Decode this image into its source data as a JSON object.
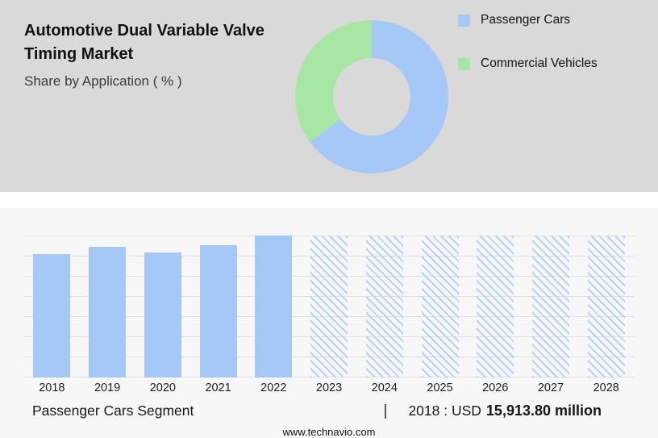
{
  "header": {
    "title": "Automotive Dual Variable Valve Timing Market",
    "subtitle": "Share by Application ( % )"
  },
  "legend": {
    "items": [
      {
        "label": "Passenger Cars",
        "color": "#a6c8f7"
      },
      {
        "label": "Commercial Vehicles",
        "color": "#a8e6a3"
      }
    ]
  },
  "chart_data": [
    {
      "type": "pie",
      "subtype": "donut",
      "title": "Share by Application ( % )",
      "legend_position": "right",
      "segments": [
        {
          "label": "Passenger Cars",
          "value": 65,
          "color": "#a6c8f7"
        },
        {
          "label": "Commercial Vehicles",
          "value": 35,
          "color": "#a8e6a3"
        }
      ]
    },
    {
      "type": "bar",
      "title": "Passenger Cars Segment market size by year",
      "grid": true,
      "bar_color": "#a6c8f7",
      "categories": [
        "2018",
        "2019",
        "2020",
        "2021",
        "2022",
        "2023",
        "2024",
        "2025",
        "2026",
        "2027",
        "2028"
      ],
      "bars": [
        {
          "year": "2018",
          "height_pct": 87,
          "style": "solid",
          "value_usd_million": 15913.8
        },
        {
          "year": "2019",
          "height_pct": 92,
          "style": "solid"
        },
        {
          "year": "2020",
          "height_pct": 88,
          "style": "solid"
        },
        {
          "year": "2021",
          "height_pct": 93,
          "style": "solid"
        },
        {
          "year": "2022",
          "height_pct": 100,
          "style": "solid"
        },
        {
          "year": "2023",
          "height_pct": 100,
          "style": "hatched"
        },
        {
          "year": "2024",
          "height_pct": 100,
          "style": "hatched"
        },
        {
          "year": "2025",
          "height_pct": 100,
          "style": "hatched"
        },
        {
          "year": "2026",
          "height_pct": 100,
          "style": "hatched"
        },
        {
          "year": "2027",
          "height_pct": 100,
          "style": "hatched"
        },
        {
          "year": "2028",
          "height_pct": 100,
          "style": "hatched"
        }
      ]
    }
  ],
  "callout": {
    "segment_label": "Passenger Cars Segment",
    "separator": "|",
    "value_prefix": "2018 : USD",
    "value": "15,913.80 million"
  },
  "footer": {
    "url": "www.technavio.com"
  }
}
